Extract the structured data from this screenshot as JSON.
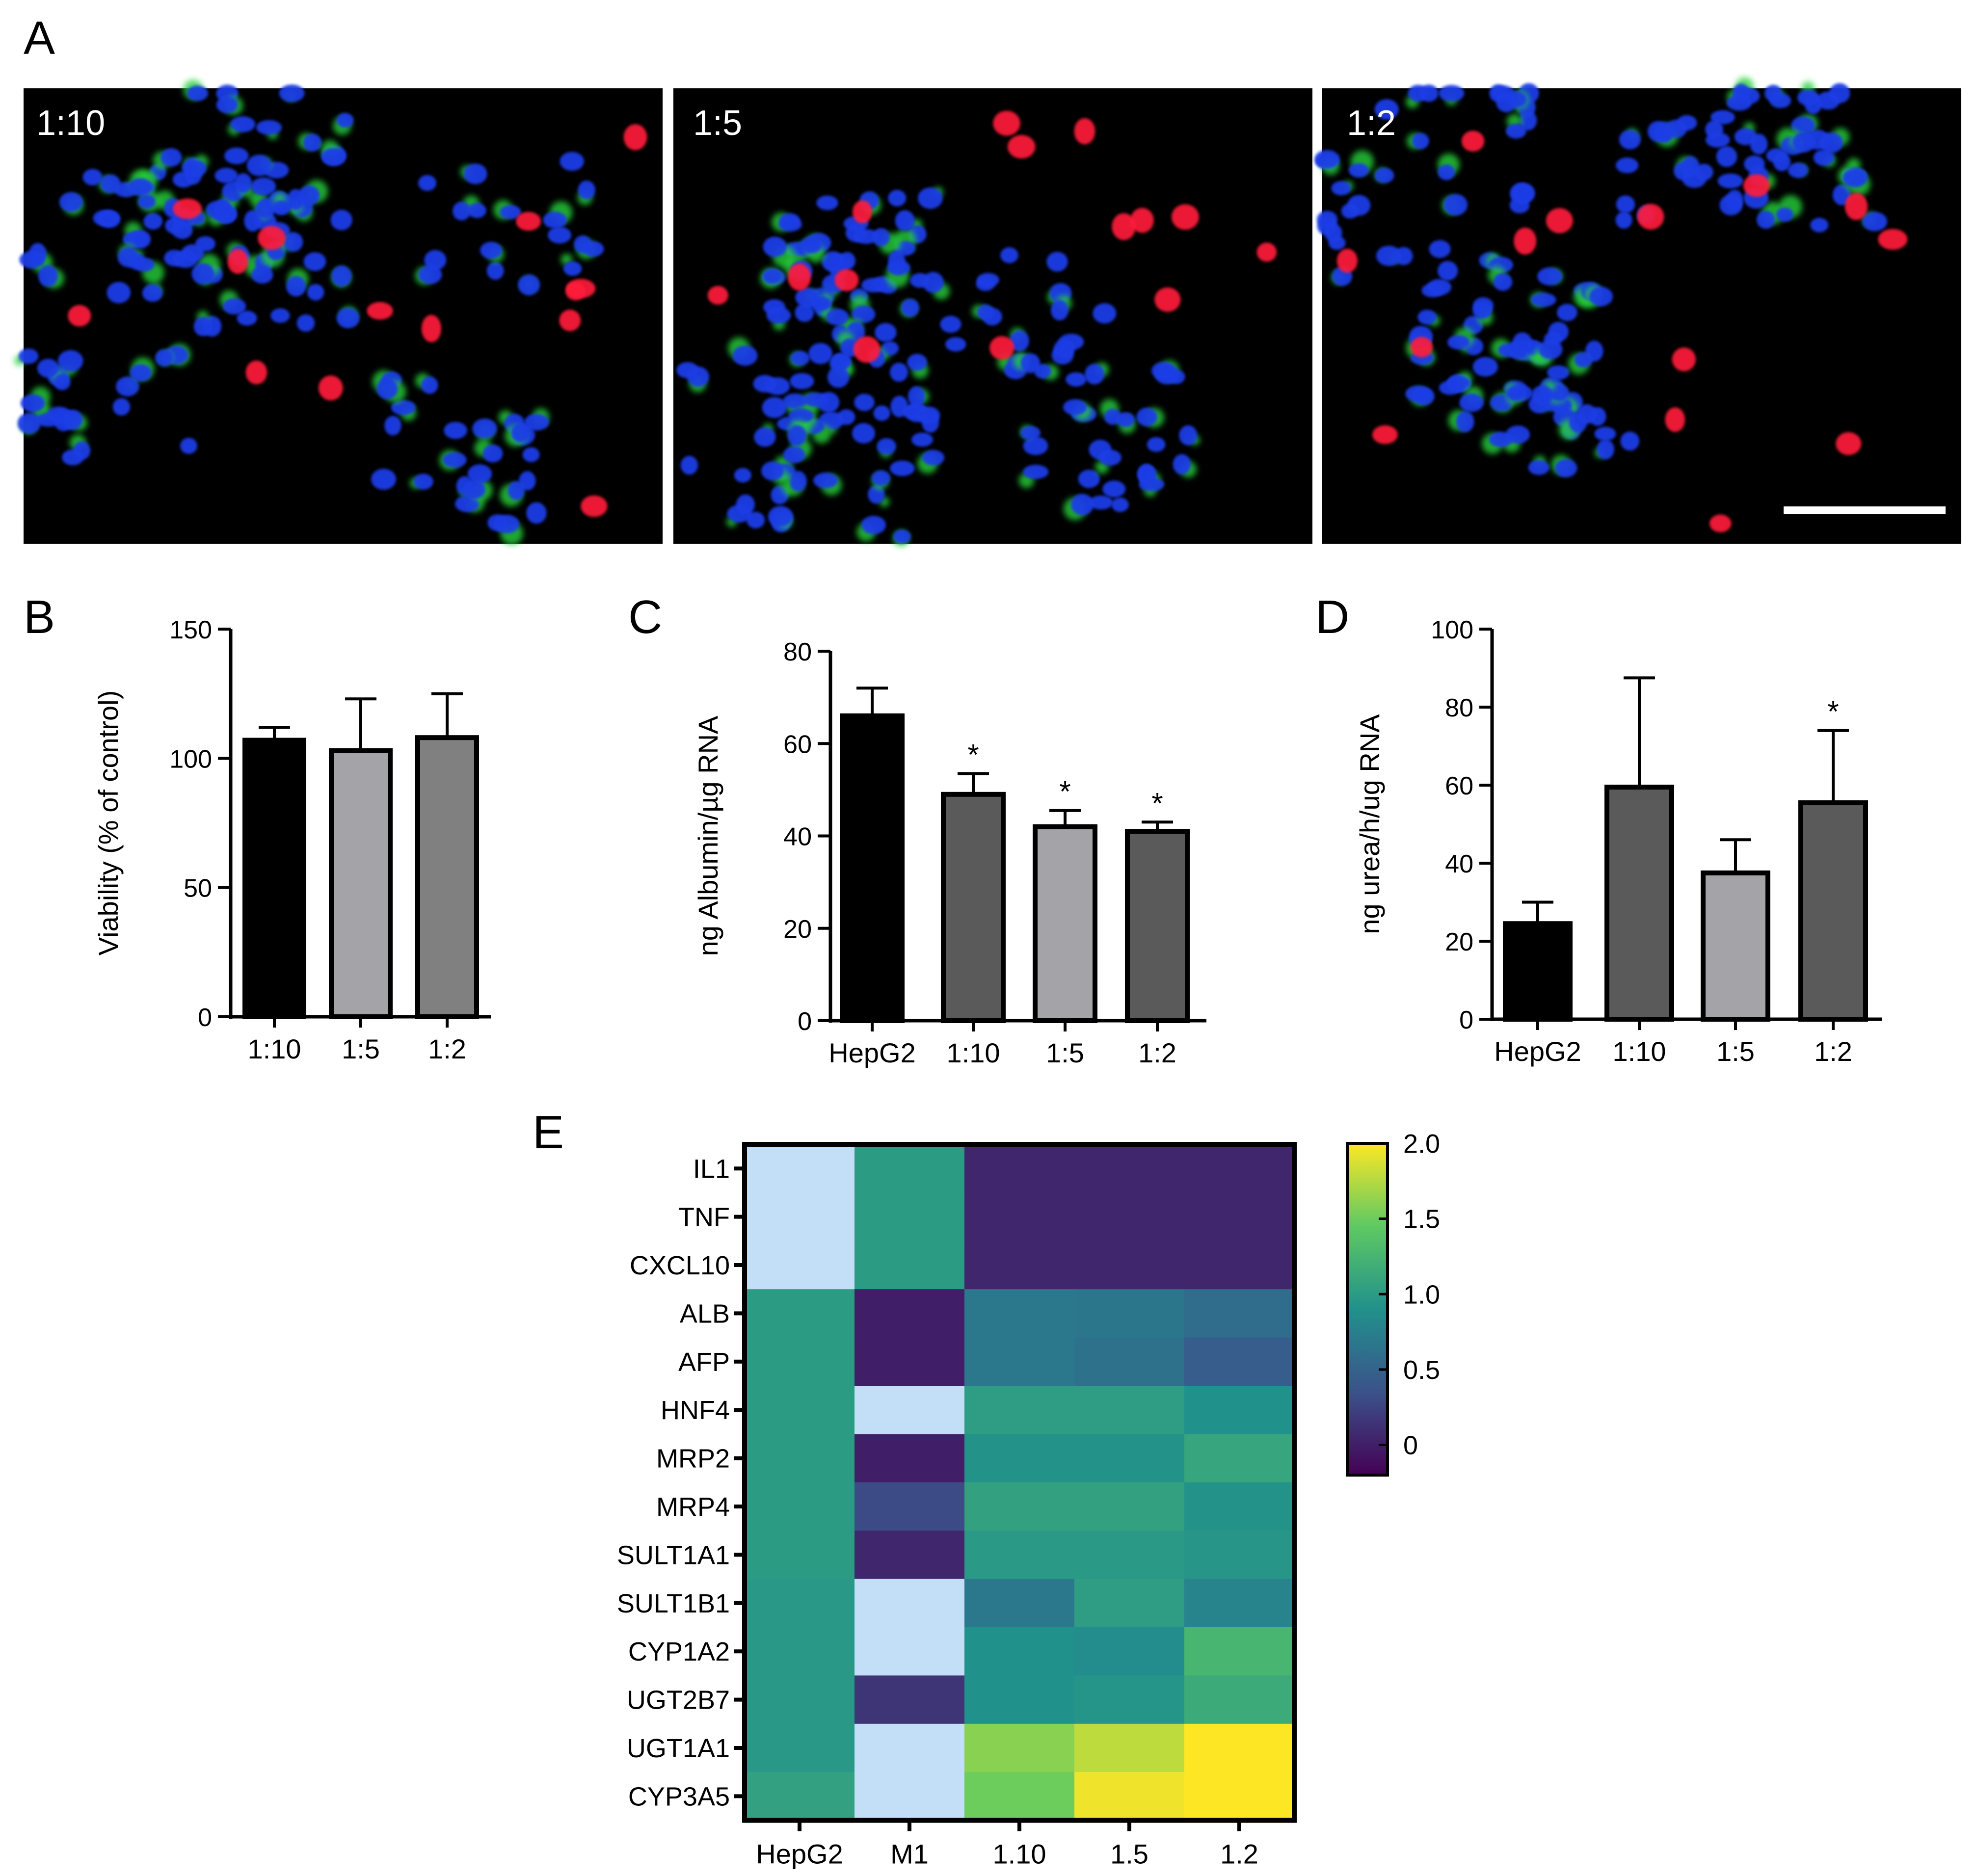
{
  "panels": {
    "A": {
      "letter": "A",
      "images": [
        {
          "label": "1:10",
          "seed": 11,
          "scalebar": false
        },
        {
          "label": "1:5",
          "seed": 23,
          "scalebar": false
        },
        {
          "label": "1:2",
          "seed": 37,
          "scalebar": true
        }
      ],
      "colors": {
        "nuclei": "#1f3ce6",
        "green": "#27d13b",
        "red": "#ff1f3a",
        "bg": "#000000"
      }
    },
    "B": {
      "letter": "B"
    },
    "C": {
      "letter": "C"
    },
    "D": {
      "letter": "D"
    },
    "E": {
      "letter": "E"
    }
  },
  "chart_data": [
    {
      "id": "B",
      "type": "bar",
      "categories": [
        "1:10",
        "1:5",
        "1:2"
      ],
      "values": [
        107,
        103,
        108
      ],
      "errors": [
        5,
        20,
        17
      ],
      "colors": [
        "#000000",
        "#a3a3a8",
        "#808080"
      ],
      "significance": [
        "",
        "",
        ""
      ],
      "ylabel": "Viability (% of control)",
      "xlabel": "",
      "ylim": [
        0,
        150
      ],
      "yticks": [
        0,
        50,
        100,
        150
      ]
    },
    {
      "id": "C",
      "type": "bar",
      "categories": [
        "HepG2",
        "1:10",
        "1:5",
        "1:2"
      ],
      "values": [
        66,
        49,
        42,
        41
      ],
      "errors": [
        6,
        4.5,
        3.5,
        2
      ],
      "colors": [
        "#000000",
        "#5a5a5a",
        "#a3a3a8",
        "#5a5a5a"
      ],
      "significance": [
        "",
        "*",
        "*",
        "*"
      ],
      "ylabel": "ng Albumin/µg RNA",
      "xlabel": "",
      "ylim": [
        0,
        80
      ],
      "yticks": [
        0,
        20,
        40,
        60,
        80
      ]
    },
    {
      "id": "D",
      "type": "bar",
      "categories": [
        "HepG2",
        "1:10",
        "1:5",
        "1:2"
      ],
      "values": [
        24.5,
        59.5,
        37.5,
        55.5
      ],
      "errors": [
        5.5,
        28,
        8.5,
        18.5
      ],
      "colors": [
        "#000000",
        "#5a5a5a",
        "#a3a3a8",
        "#5a5a5a"
      ],
      "significance": [
        "",
        "",
        "",
        "*"
      ],
      "ylabel": "ng urea/h/ug RNA",
      "xlabel": "",
      "ylim": [
        0,
        100
      ],
      "yticks": [
        0,
        20,
        40,
        60,
        80,
        100
      ]
    },
    {
      "id": "E",
      "type": "heatmap",
      "rows": [
        "IL1",
        "TNF",
        "CXCL10",
        "ALB",
        "AFP",
        "HNF4",
        "MRP2",
        "MRP4",
        "SULT1A1",
        "SULT1B1",
        "CYP1A2",
        "UGT2B7",
        "UGT1A1",
        "CYP3A5"
      ],
      "columns": [
        "HepG2",
        "M1",
        "1.10",
        "1.5",
        "1.2"
      ],
      "values": [
        [
          null,
          1.0,
          0.05,
          0.05,
          0.05
        ],
        [
          null,
          1.0,
          0.05,
          0.05,
          0.05
        ],
        [
          null,
          1.0,
          0.05,
          0.05,
          0.05
        ],
        [
          1.0,
          0.0,
          0.68,
          0.66,
          0.58
        ],
        [
          1.0,
          0.0,
          0.68,
          0.62,
          0.45
        ],
        [
          1.0,
          null,
          1.02,
          1.02,
          0.9
        ],
        [
          1.0,
          0.0,
          0.92,
          0.92,
          1.1
        ],
        [
          1.0,
          0.3,
          1.06,
          1.06,
          0.92
        ],
        [
          1.0,
          0.05,
          0.98,
          0.98,
          0.95
        ],
        [
          0.97,
          null,
          0.68,
          1.02,
          0.78
        ],
        [
          0.97,
          null,
          0.9,
          0.86,
          1.25
        ],
        [
          0.97,
          0.15,
          0.9,
          0.94,
          1.15
        ],
        [
          0.97,
          null,
          1.6,
          1.78,
          2.0
        ],
        [
          1.05,
          null,
          1.5,
          1.95,
          2.0
        ]
      ],
      "missing_color": "#c3dff7",
      "scale": {
        "min": -0.2,
        "max": 2.0,
        "ticks": [
          0,
          0.5,
          1.0,
          1.5,
          2.0
        ],
        "tick_labels": [
          "0",
          "0.5",
          "1.0",
          "1.5",
          "2.0"
        ]
      },
      "colormap": "viridis"
    }
  ]
}
